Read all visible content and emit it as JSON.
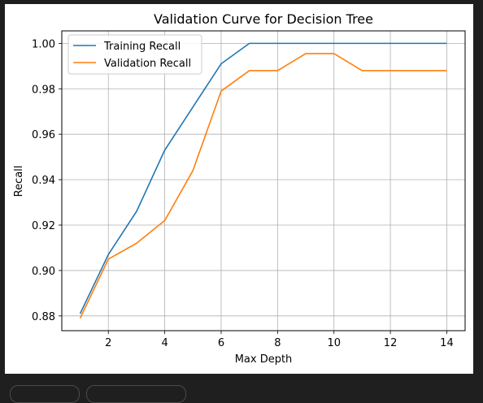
{
  "chart_data": {
    "type": "line",
    "title": "Validation Curve for Decision Tree",
    "xlabel": "Max Depth",
    "ylabel": "Recall",
    "xlim": [
      0.35,
      14.65
    ],
    "ylim": [
      0.8735,
      1.0055
    ],
    "x": [
      1,
      2,
      3,
      4,
      5,
      6,
      7,
      8,
      9,
      10,
      11,
      12,
      13,
      14
    ],
    "xticks": [
      2,
      4,
      6,
      8,
      10,
      12,
      14
    ],
    "xtick_labels": [
      "2",
      "4",
      "6",
      "8",
      "10",
      "12",
      "14"
    ],
    "yticks": [
      0.88,
      0.9,
      0.92,
      0.94,
      0.96,
      0.98,
      1.0
    ],
    "ytick_labels": [
      "0.88",
      "0.90",
      "0.92",
      "0.94",
      "0.96",
      "0.98",
      "1.00"
    ],
    "grid": true,
    "legend_position": "top-left",
    "series": [
      {
        "name": "Training Recall",
        "color": "#1f77b4",
        "values": [
          0.881,
          0.907,
          0.926,
          0.953,
          0.972,
          0.991,
          1.0,
          1.0,
          1.0,
          1.0,
          1.0,
          1.0,
          1.0,
          1.0
        ]
      },
      {
        "name": "Validation Recall",
        "color": "#ff7f0e",
        "values": [
          0.879,
          0.905,
          0.912,
          0.922,
          0.944,
          0.979,
          0.988,
          0.988,
          0.9955,
          0.9955,
          0.988,
          0.988,
          0.988,
          0.988
        ]
      }
    ]
  }
}
